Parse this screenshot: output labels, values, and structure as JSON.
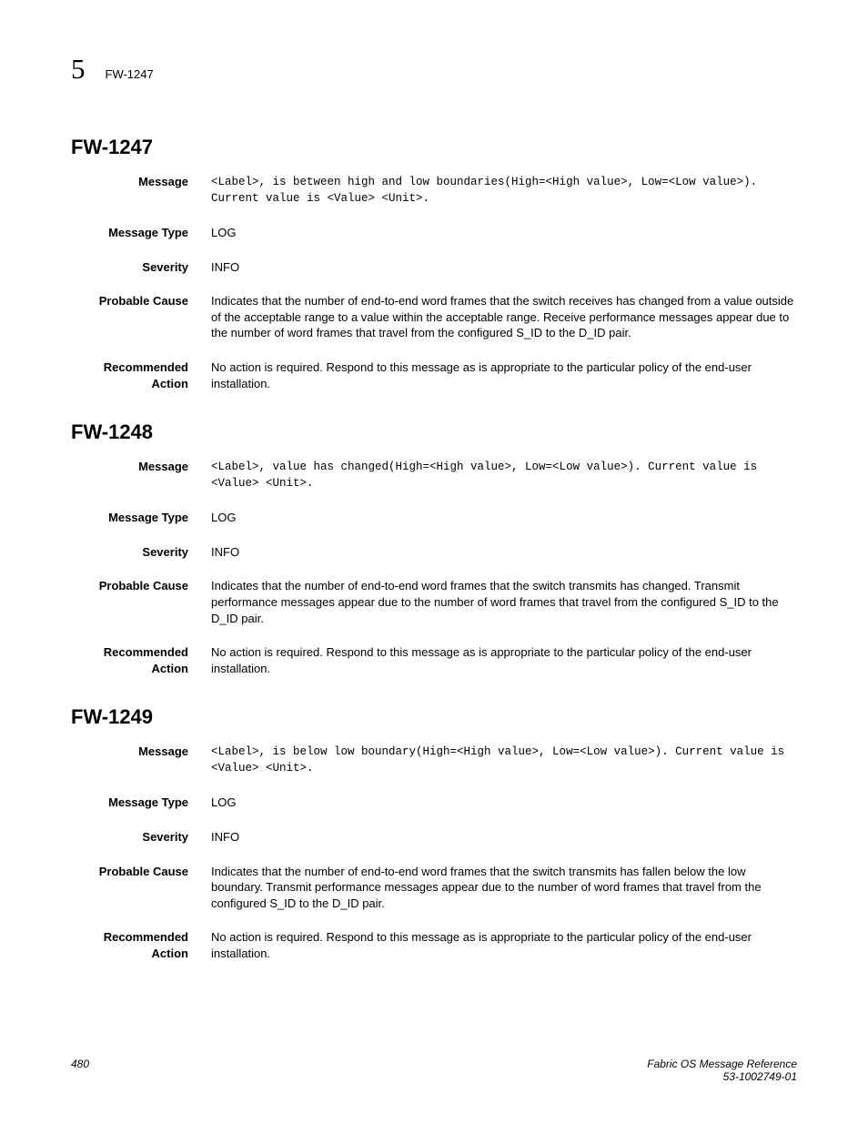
{
  "header": {
    "chapter_number": "5",
    "code": "FW-1247"
  },
  "labels": {
    "message": "Message",
    "message_type": "Message Type",
    "severity": "Severity",
    "probable_cause": "Probable Cause",
    "recommended_action_line1": "Recommended",
    "recommended_action_line2": "Action"
  },
  "sections": [
    {
      "title": "FW-1247",
      "message": "<Label>, is between high and low boundaries(High=<High value>, Low=<Low value>). Current value is <Value> <Unit>.",
      "message_type": "LOG",
      "severity": "INFO",
      "probable_cause": "Indicates that the number of end-to-end word frames that the switch receives has changed from a value outside of the acceptable range to a value within the acceptable range. Receive performance messages appear due to the number of word frames that travel from the configured S_ID to the D_ID pair.",
      "recommended_action": "No action is required. Respond to this message as is appropriate to the particular policy of the end-user installation."
    },
    {
      "title": "FW-1248",
      "message": "<Label>, value has changed(High=<High value>, Low=<Low value>). Current value is <Value> <Unit>.",
      "message_type": "LOG",
      "severity": "INFO",
      "probable_cause": "Indicates that the number of end-to-end word frames that the switch transmits has changed. Transmit performance messages appear due to the number of word frames that travel from the configured S_ID to the D_ID pair.",
      "recommended_action": "No action is required. Respond to this message as is appropriate to the particular policy of the end-user installation."
    },
    {
      "title": "FW-1249",
      "message": "<Label>, is below low boundary(High=<High value>, Low=<Low value>). Current value is <Value> <Unit>.",
      "message_type": "LOG",
      "severity": "INFO",
      "probable_cause": "Indicates that the number of end-to-end word frames that the switch transmits has fallen below the low boundary. Transmit performance messages appear due to the number of word frames that travel from the configured S_ID to the D_ID pair.",
      "recommended_action": "No action is required. Respond to this message as is appropriate to the particular policy of the end-user installation."
    }
  ],
  "footer": {
    "page_number": "480",
    "doc_title": "Fabric OS Message Reference",
    "doc_id": "53-1002749-01"
  }
}
